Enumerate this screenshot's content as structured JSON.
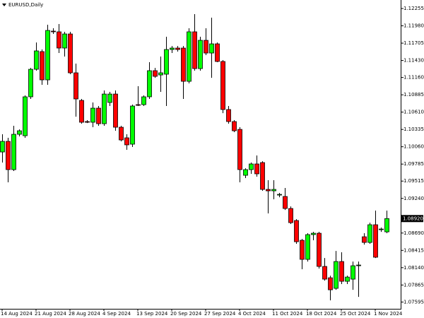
{
  "chart_data": {
    "type": "candlestick",
    "title": "EURUSD,Daily",
    "up_color": "#00ff00",
    "down_color": "#ff0000",
    "wick_color": "#000000",
    "grid": false,
    "ylim": [
      1.07487,
      1.1239
    ],
    "yticks": [
      1.12255,
      {
        "value": 1.1198,
        "label": "1.11980"
      },
      1.11705,
      {
        "value": 1.1143,
        "label": "1.11430"
      },
      {
        "value": 1.1116,
        "label": "1.11160"
      },
      1.10885,
      {
        "value": 1.1061,
        "label": "1.10610"
      },
      1.10335,
      {
        "value": 1.1006,
        "label": "1.10060"
      },
      1.09785,
      1.09515,
      {
        "value": 1.0924,
        "label": "1.09240"
      },
      {
        "value": 1.0869,
        "label": "1.08690"
      },
      1.08415,
      {
        "value": 1.0814,
        "label": "1.08140"
      },
      1.07865,
      1.07595
    ],
    "current_price": {
      "value": 1.0892,
      "label": "1.08920"
    },
    "categories": [
      "14 Aug 2024",
      null,
      null,
      null,
      null,
      null,
      "21 Aug 2024",
      null,
      null,
      null,
      null,
      null,
      "28 Aug 2024",
      null,
      null,
      null,
      null,
      null,
      "4 Sep 2024",
      null,
      null,
      null,
      null,
      null,
      "13 Sep 2024",
      null,
      null,
      null,
      null,
      null,
      "20 Sep 2024",
      null,
      null,
      null,
      null,
      null,
      "27 Sep 2024",
      null,
      null,
      null,
      null,
      null,
      "4 Oct 2024",
      null,
      null,
      null,
      null,
      null,
      "11 Oct 2024",
      null,
      null,
      null,
      null,
      null,
      "18 Oct 2024",
      null,
      null,
      null,
      null,
      null,
      "25 Oct 2024",
      null,
      null,
      null,
      null,
      null,
      "1 Nov 2024",
      null,
      null
    ],
    "ohlc": [
      [
        1.09977,
        1.10258,
        1.09809,
        1.10146
      ],
      [
        1.10146,
        1.10202,
        1.09495,
        1.09697
      ],
      [
        1.09697,
        1.10393,
        1.09675,
        1.10258
      ],
      [
        1.10258,
        1.10336,
        1.10224,
        1.10314
      ],
      [
        1.10235,
        1.10875,
        1.10202,
        1.10853
      ],
      [
        1.10853,
        1.11312,
        1.10819,
        1.1129
      ],
      [
        1.1129,
        1.11716,
        1.11268,
        1.11582
      ],
      [
        1.11571,
        1.11604,
        1.11043,
        1.11122
      ],
      [
        1.11122,
        1.11997,
        1.11043,
        1.11907
      ],
      [
        1.11896,
        1.11941,
        1.11851,
        1.11885
      ],
      [
        1.11885,
        1.12008,
        1.11548,
        1.11627
      ],
      [
        1.11627,
        1.11885,
        1.11492,
        1.11851
      ],
      [
        1.11851,
        1.11885,
        1.11212,
        1.11234
      ],
      [
        1.11234,
        1.1138,
        1.10538,
        1.10819
      ],
      [
        1.10796,
        1.10819,
        1.10426,
        1.10449
      ],
      [
        1.1046,
        1.10483,
        1.10437,
        1.10449
      ],
      [
        1.10449,
        1.10763,
        1.1037,
        1.10673
      ],
      [
        1.10673,
        1.10707,
        1.10393,
        1.10426
      ],
      [
        1.10426,
        1.10954,
        1.10393,
        1.10897
      ],
      [
        1.10763,
        1.10931,
        1.10707,
        1.10897
      ],
      [
        1.10897,
        1.10954,
        1.10314,
        1.1037
      ],
      [
        1.1037,
        1.10393,
        1.10146,
        1.10168
      ],
      [
        1.10202,
        1.10258,
        1.10011,
        1.1009
      ],
      [
        1.10101,
        1.10729,
        1.10056,
        1.10707
      ],
      [
        1.10729,
        1.11021,
        1.10707,
        1.10718
      ],
      [
        1.10729,
        1.10875,
        1.10707,
        1.10853
      ],
      [
        1.10853,
        1.11402,
        1.10819,
        1.11268
      ],
      [
        1.11268,
        1.11312,
        1.11155,
        1.11178
      ],
      [
        1.112,
        1.11492,
        1.10931,
        1.11234
      ],
      [
        1.11212,
        1.11806,
        1.10707,
        1.11604
      ],
      [
        1.11604,
        1.1166,
        1.11548,
        1.11627
      ],
      [
        1.11627,
        1.1166,
        1.11571,
        1.11604
      ],
      [
        1.11627,
        1.1166,
        1.10819,
        1.11099
      ],
      [
        1.11099,
        1.11941,
        1.11066,
        1.11885
      ],
      [
        1.11885,
        1.12165,
        1.11268,
        1.11301
      ],
      [
        1.11301,
        1.11806,
        1.11268,
        1.1175
      ],
      [
        1.1175,
        1.11941,
        1.11515,
        1.11548
      ],
      [
        1.11548,
        1.12109,
        1.11155,
        1.11694
      ],
      [
        1.11694,
        1.11716,
        1.11402,
        1.11414
      ],
      [
        1.11414,
        1.11436,
        1.10594,
        1.10651
      ],
      [
        1.10651,
        1.10707,
        1.10426,
        1.1046
      ],
      [
        1.1046,
        1.10483,
        1.10292,
        1.10314
      ],
      [
        1.10336,
        1.1037,
        1.09495,
        1.09697
      ],
      [
        1.09607,
        1.09719,
        1.09562,
        1.09697
      ],
      [
        1.09697,
        1.09809,
        1.0963,
        1.09787
      ],
      [
        1.09787,
        1.09921,
        1.09585,
        1.0963
      ],
      [
        1.09809,
        1.09831,
        1.0936,
        1.09383
      ],
      [
        1.09383,
        1.09529,
        1.09001,
        1.0936
      ],
      [
        1.0936,
        1.09529,
        1.09226,
        1.09383
      ],
      [
        1.09293,
        1.09327,
        1.09259,
        1.09304
      ],
      [
        1.09271,
        1.09405,
        1.09057,
        1.0908
      ],
      [
        1.0908,
        1.09113,
        1.08833,
        1.08855
      ],
      [
        1.08889,
        1.08911,
        1.08519,
        1.08552
      ],
      [
        1.08575,
        1.08597,
        1.08115,
        1.08272
      ],
      [
        1.08272,
        1.08687,
        1.08238,
        1.08665
      ],
      [
        1.08665,
        1.08709,
        1.08575,
        1.08687
      ],
      [
        1.08687,
        1.08709,
        1.08126,
        1.0816
      ],
      [
        1.0816,
        1.08294,
        1.07935,
        1.07958
      ],
      [
        1.0798,
        1.08013,
        1.07621,
        1.07789
      ],
      [
        1.07812,
        1.08406,
        1.07789,
        1.08238
      ],
      [
        1.08238,
        1.08384,
        1.07879,
        1.07924
      ],
      [
        1.07924,
        1.08013,
        1.07879,
        1.07991
      ],
      [
        1.07958,
        1.08238,
        1.07789,
        1.08171
      ],
      [
        1.08171,
        1.08238,
        1.07677,
        1.08182
      ],
      [
        1.08631,
        1.08687,
        1.08507,
        1.08541
      ],
      [
        1.08541,
        1.08855,
        1.08519,
        1.08822
      ],
      [
        1.08822,
        1.09046,
        1.08294,
        1.08306
      ],
      [
        1.08743,
        1.08777,
        1.08709,
        1.08754
      ],
      [
        1.08709,
        1.09046,
        1.08687,
        1.0892
      ]
    ]
  }
}
